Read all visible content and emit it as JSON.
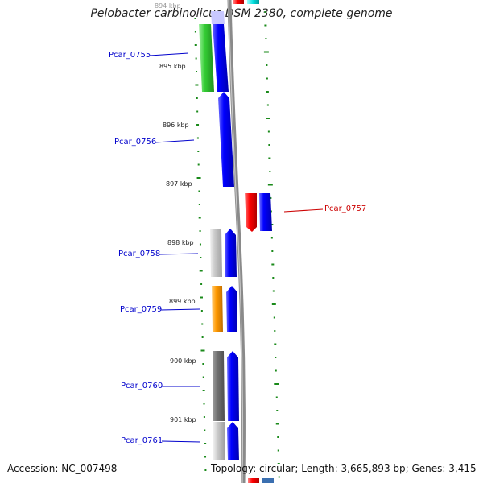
{
  "map": {
    "title": "Pelobacter carbinolicus DSM 2380, complete genome",
    "accession_text": "Accession: NC_007498",
    "topology_text": "Topology: circular; Length: 3,665,893 bp; Genes: 3,415"
  },
  "scale_labels": [
    "894 kbp",
    "895 kbp",
    "896 kbp",
    "897 kbp",
    "898 kbp",
    "899 kbp",
    "900 kbp",
    "901 kbp"
  ],
  "genes": [
    {
      "label": "Pcar_0755",
      "color": "#0000cc"
    },
    {
      "label": "Pcar_0756",
      "color": "#0000cc"
    },
    {
      "label": "Pcar_0757",
      "color": "#cc0000"
    },
    {
      "label": "Pcar_0758",
      "color": "#0000cc"
    },
    {
      "label": "Pcar_0759",
      "color": "#0000cc"
    },
    {
      "label": "Pcar_0760",
      "color": "#0000cc"
    },
    {
      "label": "Pcar_0761",
      "color": "#0000cc"
    }
  ],
  "colors": {
    "cds_blue": "#0000ff",
    "cog_green": "#33cc33",
    "cog_red": "#ff0000",
    "cog_orange": "#ff9900",
    "cog_gray": "#888888",
    "backbone": "#8a8a8a",
    "gc_tick": "#1a8a1a"
  }
}
